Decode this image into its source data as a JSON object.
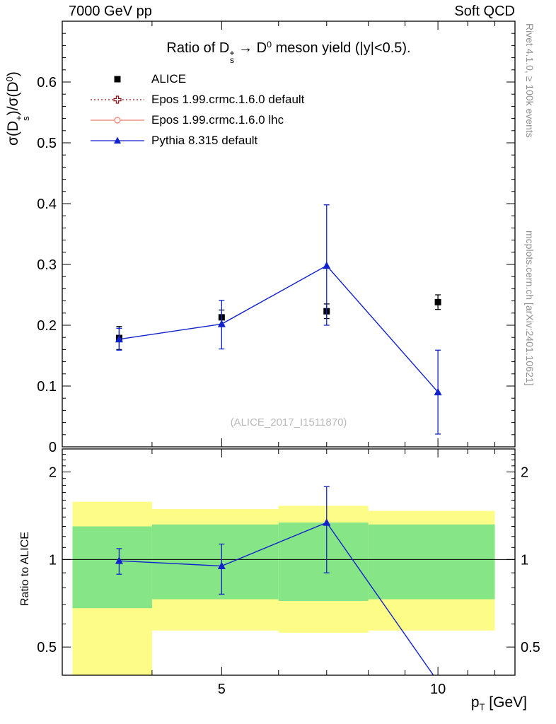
{
  "header": {
    "left": "7000 GeV pp",
    "right": "Soft QCD"
  },
  "side_notes": {
    "top": "Rivet 4.1.0, ≥ 100k events",
    "bottom": "mcplots.cern.ch [arXiv:2401.10621]"
  },
  "watermark": "(ALICE_2017_I1511870)",
  "titles": {
    "main": {
      "pre": "Ratio of D",
      "sup1": "+",
      "sub1": "s",
      "mid": " → D",
      "sup2": "0",
      "post": " meson yield (|y|<0.5)."
    },
    "y_top": {
      "pre": "σ(D",
      "sup1": "+",
      "sub1": "s",
      "mid": ")/σ(D",
      "sup2": "0",
      "post": ")"
    },
    "y_bottom": "Ratio to ALICE",
    "x": {
      "pre": "p",
      "sub": "T",
      "post": " [GeV]"
    }
  },
  "legend": [
    {
      "label": "ALICE",
      "marker": "filled-square",
      "line": "none",
      "color": "#000000"
    },
    {
      "label": "Epos 1.99.crmc.1.6.0 default",
      "marker": "open-cross",
      "line": "dotted",
      "color": "#991111"
    },
    {
      "label": "Epos 1.99.crmc.1.6.0 lhc",
      "marker": "open-circle",
      "line": "solid",
      "color": "#ee7e70"
    },
    {
      "label": "Pythia 8.315 default",
      "marker": "filled-triangle",
      "line": "solid",
      "color": "#1122cc"
    }
  ],
  "chart_data": {
    "type": "line",
    "title": "Ratio of D_s^+ → D^0 meson yield (|y|<0.5).",
    "x_axis": {
      "label": "p_T [GeV]",
      "scale": "log",
      "range": [
        3.0,
        12.8
      ],
      "major_ticks": [
        5,
        10
      ],
      "major_tick_labels": [
        "5",
        "10"
      ],
      "minor_ticks": [
        4,
        6,
        7,
        8,
        9,
        11,
        12
      ]
    },
    "top_panel": {
      "y_axis": {
        "label": "σ(D_s^+)/σ(D^0)",
        "scale": "linear",
        "range": [
          0,
          0.7
        ],
        "major_ticks": [
          0,
          0.1,
          0.2,
          0.3,
          0.4,
          0.5,
          0.6
        ],
        "major_tick_labels": [
          "0",
          "0.1",
          "0.2",
          "0.3",
          "0.4",
          "0.5",
          "0.6"
        ],
        "minor_tick_step": 0.02
      },
      "series": [
        {
          "name": "ALICE",
          "type": "points",
          "marker": "filled-square",
          "color": "#000000",
          "x": [
            3.6,
            5,
            7,
            10
          ],
          "y": [
            0.179,
            0.213,
            0.223,
            0.238
          ],
          "y_lo": [
            0.16,
            0.201,
            0.211,
            0.226
          ],
          "y_hi": [
            0.198,
            0.225,
            0.235,
            0.25
          ]
        },
        {
          "name": "Epos 1.99.crmc.1.6.0 default",
          "type": "line+points",
          "marker": "open-cross",
          "color": "#991111",
          "x": [],
          "y": [],
          "y_lo": [],
          "y_hi": []
        },
        {
          "name": "Epos 1.99.crmc.1.6.0 lhc",
          "type": "line+points",
          "marker": "open-circle",
          "color": "#ee7e70",
          "x": [],
          "y": [],
          "y_lo": [],
          "y_hi": []
        },
        {
          "name": "Pythia 8.315 default",
          "type": "line+points",
          "marker": "filled-triangle",
          "color": "#1122cc",
          "x": [
            3.6,
            5,
            7,
            10
          ],
          "y": [
            0.177,
            0.202,
            0.298,
            0.09
          ],
          "y_lo": [
            0.159,
            0.161,
            0.2,
            0.021
          ],
          "y_hi": [
            0.195,
            0.241,
            0.398,
            0.159
          ]
        }
      ]
    },
    "bottom_panel": {
      "y_axis": {
        "label": "Ratio to ALICE",
        "scale": "log",
        "range": [
          0.4,
          2.4
        ],
        "major_ticks": [
          0.5,
          1,
          2
        ],
        "major_tick_labels": [
          "0.5",
          "1",
          "2"
        ]
      },
      "reference_line": 1.0,
      "bands": {
        "bin_edges": [
          3.1,
          4,
          6,
          8,
          12
        ],
        "outer_color": "#fcfc86",
        "inner_color": "#86e686",
        "outer_lo": [
          0.4,
          0.57,
          0.56,
          0.57
        ],
        "outer_hi": [
          1.58,
          1.49,
          1.53,
          1.47
        ],
        "inner_lo": [
          0.68,
          0.73,
          0.72,
          0.73
        ],
        "inner_hi": [
          1.3,
          1.32,
          1.34,
          1.32
        ]
      },
      "ratio_series": [
        {
          "name": "Pythia 8.315 default",
          "marker": "filled-triangle",
          "color": "#1122cc",
          "x": [
            3.6,
            5,
            7,
            10
          ],
          "y": [
            0.99,
            0.95,
            1.34,
            0.38
          ],
          "y_lo": [
            0.89,
            0.76,
            0.9,
            null
          ],
          "y_hi": [
            1.09,
            1.13,
            1.78,
            null
          ]
        }
      ]
    }
  }
}
